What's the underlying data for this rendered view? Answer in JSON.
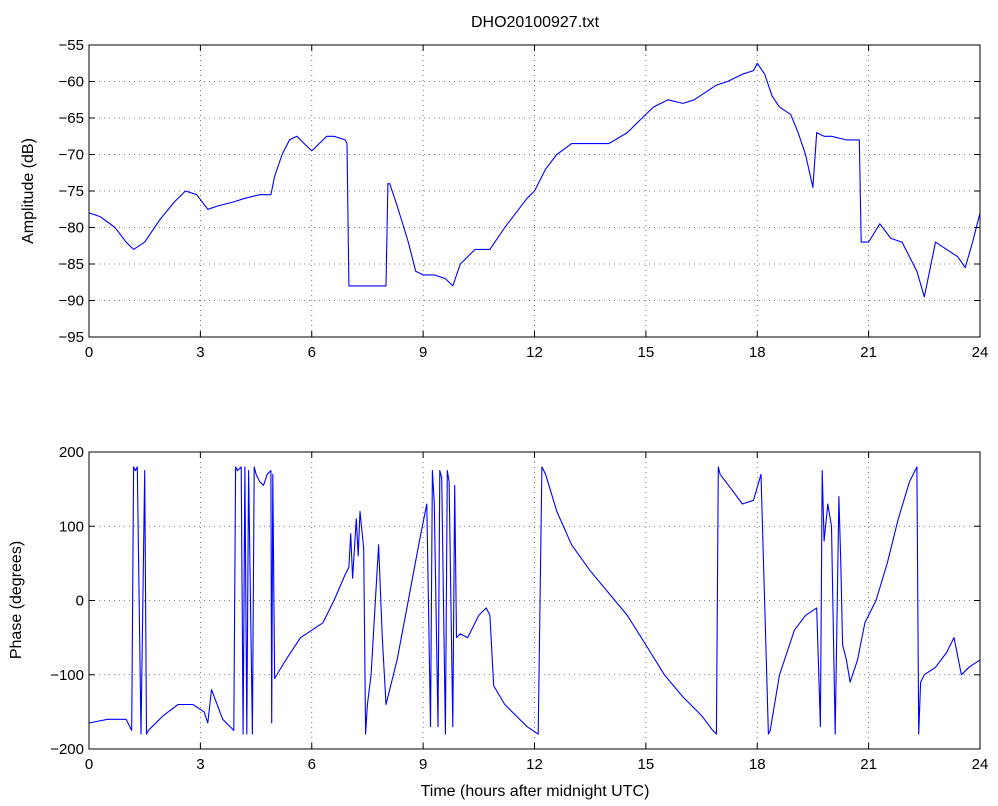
{
  "chart_data": [
    {
      "type": "line",
      "title": "DHO20100927.txt",
      "xlabel": "",
      "ylabel": "Amplitude (dB)",
      "xlim": [
        0,
        24
      ],
      "ylim": [
        -95,
        -55
      ],
      "xticks": [
        "0",
        "3",
        "6",
        "9",
        "12",
        "15",
        "18",
        "21",
        "24"
      ],
      "yticks": [
        "-95",
        "-90",
        "-85",
        "-80",
        "-75",
        "-70",
        "-65",
        "-60",
        "-55"
      ],
      "grid": true,
      "color": "#0000ff",
      "series": [
        {
          "x": [
            0,
            0.3,
            0.7,
            1.0,
            1.2,
            1.5,
            1.9,
            2.3,
            2.6,
            2.9,
            3.2,
            3.5,
            3.9,
            4.2,
            4.6,
            4.9,
            5.0,
            5.2,
            5.4,
            5.6,
            5.8,
            6.0,
            6.2,
            6.4,
            6.6,
            6.9,
            6.95,
            7.0,
            7.2,
            7.6,
            8.0,
            8.05,
            8.1,
            8.3,
            8.6,
            8.8,
            9.0,
            9.3,
            9.6,
            9.8,
            10.0,
            10.4,
            10.8,
            11.2,
            11.5,
            11.8,
            12.0,
            12.3,
            12.6,
            13.0,
            13.5,
            14.0,
            14.5,
            14.9,
            15.2,
            15.6,
            16.0,
            16.3,
            16.6,
            16.9,
            17.2,
            17.6,
            17.9,
            18.0,
            18.2,
            18.4,
            18.6,
            18.9,
            19.1,
            19.3,
            19.5,
            19.6,
            19.8,
            20.0,
            20.4,
            20.75,
            20.8,
            21.0,
            21.3,
            21.6,
            21.9,
            22.1,
            22.3,
            22.5,
            22.8,
            23.1,
            23.4,
            23.6,
            23.8,
            24.0
          ],
          "y": [
            -78,
            -78.5,
            -80,
            -82,
            -83,
            -82,
            -79,
            -76.5,
            -75,
            -75.5,
            -77.5,
            -77,
            -76.5,
            -76,
            -75.5,
            -75.5,
            -73,
            -70,
            -68,
            -67.5,
            -68.5,
            -69.5,
            -68.5,
            -67.5,
            -67.5,
            -68,
            -68.5,
            -88,
            -88,
            -88,
            -88,
            -74,
            -74,
            -77,
            -82,
            -86,
            -86.5,
            -86.5,
            -87,
            -88,
            -85,
            -83,
            -83,
            -80,
            -78,
            -76,
            -75,
            -72,
            -70,
            -68.5,
            -68.5,
            -68.5,
            -67,
            -65,
            -63.5,
            -62.5,
            -63,
            -62.5,
            -61.5,
            -60.5,
            -60,
            -59,
            -58.5,
            -57.5,
            -59,
            -62,
            -63.5,
            -64.5,
            -67,
            -70,
            -74.5,
            -67,
            -67.5,
            -67.5,
            -68,
            -68,
            -82,
            -82,
            -79.5,
            -81.5,
            -82,
            -84,
            -86,
            -89.5,
            -82,
            -83,
            -84,
            -85.5,
            -82,
            -78
          ]
        }
      ]
    },
    {
      "type": "line",
      "title": "",
      "xlabel": "Time (hours after midnight UTC)",
      "ylabel": "Phase (degrees)",
      "xlim": [
        0,
        24
      ],
      "ylim": [
        -200,
        200
      ],
      "xticks": [
        "0",
        "3",
        "6",
        "9",
        "12",
        "15",
        "18",
        "21",
        "24"
      ],
      "yticks": [
        "-200",
        "-100",
        "0",
        "100",
        "200"
      ],
      "grid": true,
      "color": "#0000ff",
      "series": [
        {
          "x": [
            0,
            0.5,
            1.0,
            1.15,
            1.2,
            1.25,
            1.3,
            1.4,
            1.5,
            1.55,
            1.6,
            1.7,
            2.0,
            2.4,
            2.8,
            3.1,
            3.2,
            3.3,
            3.6,
            3.9,
            3.95,
            4.0,
            4.1,
            4.15,
            4.2,
            4.25,
            4.3,
            4.4,
            4.45,
            4.5,
            4.6,
            4.7,
            4.8,
            4.9,
            4.92,
            4.95,
            5.0,
            5.3,
            5.7,
            6.0,
            6.3,
            6.6,
            6.9,
            7.0,
            7.05,
            7.1,
            7.2,
            7.25,
            7.3,
            7.4,
            7.45,
            7.5,
            7.6,
            7.8,
            7.9,
            8.0,
            8.3,
            8.6,
            8.9,
            9.1,
            9.2,
            9.25,
            9.3,
            9.4,
            9.45,
            9.5,
            9.6,
            9.65,
            9.7,
            9.8,
            9.85,
            9.9,
            10.0,
            10.2,
            10.5,
            10.7,
            10.8,
            10.9,
            11.2,
            11.5,
            11.8,
            12.1,
            12.2,
            12.25,
            12.3,
            12.6,
            13.0,
            13.5,
            14.0,
            14.5,
            15.0,
            15.5,
            16.0,
            16.5,
            16.8,
            16.9,
            16.95,
            17.0,
            17.3,
            17.6,
            17.9,
            18.1,
            18.3,
            18.35,
            18.6,
            19.0,
            19.3,
            19.6,
            19.7,
            19.75,
            19.8,
            19.9,
            20.0,
            20.1,
            20.2,
            20.25,
            20.3,
            20.4,
            20.5,
            20.7,
            20.9,
            21.2,
            21.5,
            21.8,
            22.1,
            22.3,
            22.35,
            22.4,
            22.5,
            22.8,
            23.1,
            23.3,
            23.5,
            23.7,
            24.0
          ],
          "y": [
            -165,
            -160,
            -160,
            -175,
            180,
            175,
            180,
            -180,
            175,
            -180,
            -175,
            -170,
            -155,
            -140,
            -140,
            -150,
            -165,
            -120,
            -160,
            -175,
            180,
            175,
            180,
            -180,
            180,
            -180,
            175,
            -180,
            180,
            170,
            160,
            155,
            170,
            175,
            -165,
            170,
            -105,
            -80,
            -50,
            -40,
            -30,
            0,
            35,
            45,
            90,
            30,
            110,
            60,
            120,
            70,
            -180,
            -140,
            -100,
            75,
            -50,
            -140,
            -80,
            0,
            80,
            130,
            -170,
            175,
            130,
            -170,
            175,
            165,
            -180,
            175,
            160,
            -170,
            155,
            -50,
            -45,
            -50,
            -20,
            -10,
            -20,
            -115,
            -140,
            -155,
            -170,
            -180,
            180,
            175,
            170,
            120,
            75,
            40,
            10,
            -20,
            -60,
            -100,
            -130,
            -155,
            -175,
            -180,
            180,
            170,
            150,
            130,
            135,
            170,
            -180,
            -175,
            -100,
            -40,
            -20,
            -10,
            -170,
            175,
            80,
            130,
            100,
            -180,
            140,
            50,
            -60,
            -80,
            -110,
            -80,
            -30,
            0,
            50,
            110,
            160,
            180,
            -180,
            -110,
            -100,
            -90,
            -70,
            -50,
            -100,
            -90,
            -80
          ]
        }
      ]
    }
  ]
}
